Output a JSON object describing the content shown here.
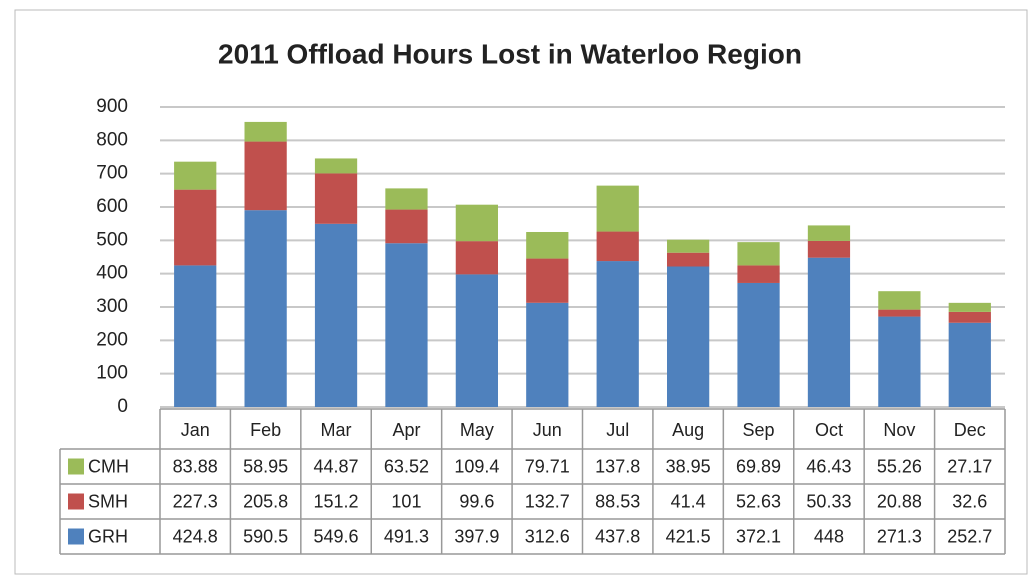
{
  "chart_data": {
    "type": "stacked_bar",
    "title": "2011 Offload Hours Lost in Waterloo Region",
    "categories": [
      "Jan",
      "Feb",
      "Mar",
      "Apr",
      "May",
      "Jun",
      "Jul",
      "Aug",
      "Sep",
      "Oct",
      "Nov",
      "Dec"
    ],
    "series": [
      {
        "name": "GRH",
        "color": "#4f81bd",
        "values": [
          424.8,
          590.5,
          549.6,
          491.3,
          397.9,
          312.6,
          437.8,
          421.5,
          372.1,
          448,
          271.3,
          252.7
        ]
      },
      {
        "name": "SMH",
        "color": "#c0504d",
        "values": [
          227.3,
          205.8,
          151.2,
          101,
          99.6,
          132.7,
          88.53,
          41.4,
          52.63,
          50.33,
          20.88,
          32.6
        ]
      },
      {
        "name": "CMH",
        "color": "#9bbb59",
        "values": [
          83.88,
          58.95,
          44.87,
          63.52,
          109.4,
          79.71,
          137.8,
          38.95,
          69.89,
          46.43,
          55.26,
          27.17
        ]
      }
    ],
    "ylim": [
      0,
      900
    ],
    "yticks": [
      0,
      100,
      200,
      300,
      400,
      500,
      600,
      700,
      800,
      900
    ],
    "grid": true,
    "legend": "data-table"
  }
}
